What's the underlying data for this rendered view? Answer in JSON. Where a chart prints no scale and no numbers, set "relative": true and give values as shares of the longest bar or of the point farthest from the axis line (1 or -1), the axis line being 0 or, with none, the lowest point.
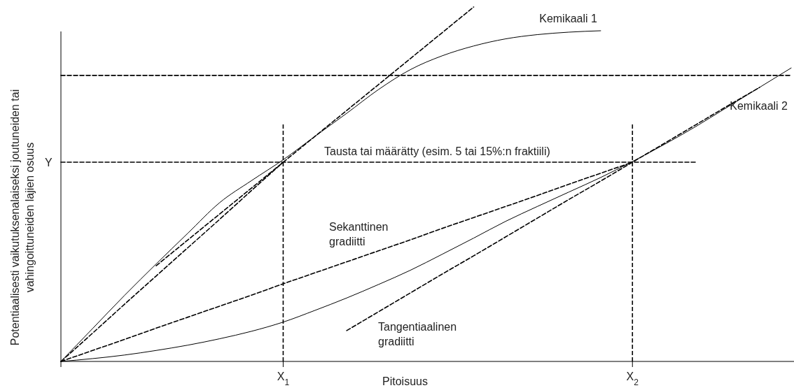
{
  "chart_data": {
    "type": "line",
    "relative": true,
    "xlabel": "Pitoisuus",
    "ylabel": "Potentiaalisesti vaikutuksenalaiseksi joutuneiden tai vahingoittuneiden lajien osuus",
    "legend": false,
    "grid": false,
    "marker": "none",
    "categories": [
      null,
      null,
      null,
      null,
      null,
      null,
      null,
      "X$_{1}$",
      null,
      null,
      null,
      null,
      null,
      null,
      null,
      null,
      null,
      null,
      "X$_{2}$",
      null,
      null,
      null,
      null,
      null
    ],
    "series": [
      {
        "name": "Kemikaali 1",
        "color": "#000000",
        "line_style": "solid",
        "values": [
          0,
          0.093,
          0.186,
          0.275,
          0.362,
          0.448,
          0.51,
          0.569,
          0.635,
          0.7,
          0.767,
          0.823,
          0.862,
          0.89,
          0.91,
          0.922,
          0.929,
          0.933,
          null,
          null,
          null,
          null,
          null,
          null
        ]
      },
      {
        "name": "Kemikaali 2",
        "color": "#000000",
        "line_style": "solid",
        "values": [
          0,
          0.008,
          0.018,
          0.031,
          0.046,
          0.064,
          0.085,
          0.111,
          0.144,
          0.179,
          0.217,
          0.257,
          0.302,
          0.348,
          0.395,
          0.437,
          0.478,
          0.519,
          0.564,
          0.612,
          0.663,
          0.718,
          0.773,
          0.828
        ]
      },
      {
        "color": "#000000",
        "line_style": "dashed",
        "values": [
          0.807,
          0.807,
          0.807,
          0.807,
          0.807,
          0.807,
          0.807,
          0.807,
          0.807,
          0.807,
          0.807,
          0.807,
          0.807,
          0.807,
          0.807,
          0.807,
          0.807,
          0.807,
          0.807,
          0.807,
          0.807,
          0.807,
          0.807,
          0.807
        ]
      },
      {
        "color": "#000000",
        "line_style": "dashed",
        "values": [
          0.562,
          0.562,
          0.562,
          0.562,
          0.562,
          0.562,
          0.562,
          0.562,
          0.562,
          0.562,
          0.562,
          0.562,
          0.562,
          0.562,
          0.562,
          0.562,
          0.562,
          0.562,
          0.562,
          0.562,
          0.562,
          null,
          null,
          null
        ]
      },
      {
        "color": "#000000",
        "line_style": "dashed",
        "values": [
          null,
          null,
          null,
          0.27,
          0.343,
          0.416,
          0.489,
          0.562,
          0.635,
          0.708,
          0.781,
          0.854,
          0.927,
          1.0,
          null,
          null,
          null,
          null,
          null,
          null,
          null,
          null,
          null,
          null
        ]
      },
      {
        "color": "#000000",
        "line_style": "dashed",
        "values": [
          0,
          0.08,
          0.161,
          0.241,
          0.321,
          0.401,
          0.482,
          0.562,
          null,
          null,
          null,
          null,
          null,
          null,
          null,
          null,
          null,
          null,
          null,
          null,
          null,
          null,
          null,
          null
        ]
      },
      {
        "color": "#000000",
        "line_style": "dashed",
        "values": [
          0,
          0.031,
          0.062,
          0.094,
          0.125,
          0.156,
          0.187,
          0.219,
          0.25,
          0.281,
          0.312,
          0.343,
          0.375,
          0.406,
          0.437,
          0.468,
          0.5,
          0.531,
          0.562,
          null,
          null,
          null,
          null,
          null
        ]
      },
      {
        "color": "#000000",
        "line_style": "dashed",
        "values": [
          null,
          null,
          null,
          null,
          null,
          null,
          null,
          null,
          null,
          0.087,
          0.14,
          0.193,
          0.246,
          0.298,
          0.351,
          0.404,
          0.457,
          0.509,
          0.562,
          0.615,
          0.668,
          0.721,
          0.773,
          null
        ]
      }
    ],
    "ref_lines": [
      {
        "axis": "x",
        "value": "X$_{1}$",
        "line_style": "dashed"
      },
      {
        "axis": "x",
        "value": "X$_{2}$",
        "line_style": "dashed"
      }
    ],
    "annotations": [
      "Y",
      "Tausta tai määrätty (esim. 5 tai 15%:n fraktiili)",
      "Sekanttinen\ngradiitti",
      "Tangentiaalinen\ngradiitti"
    ]
  }
}
